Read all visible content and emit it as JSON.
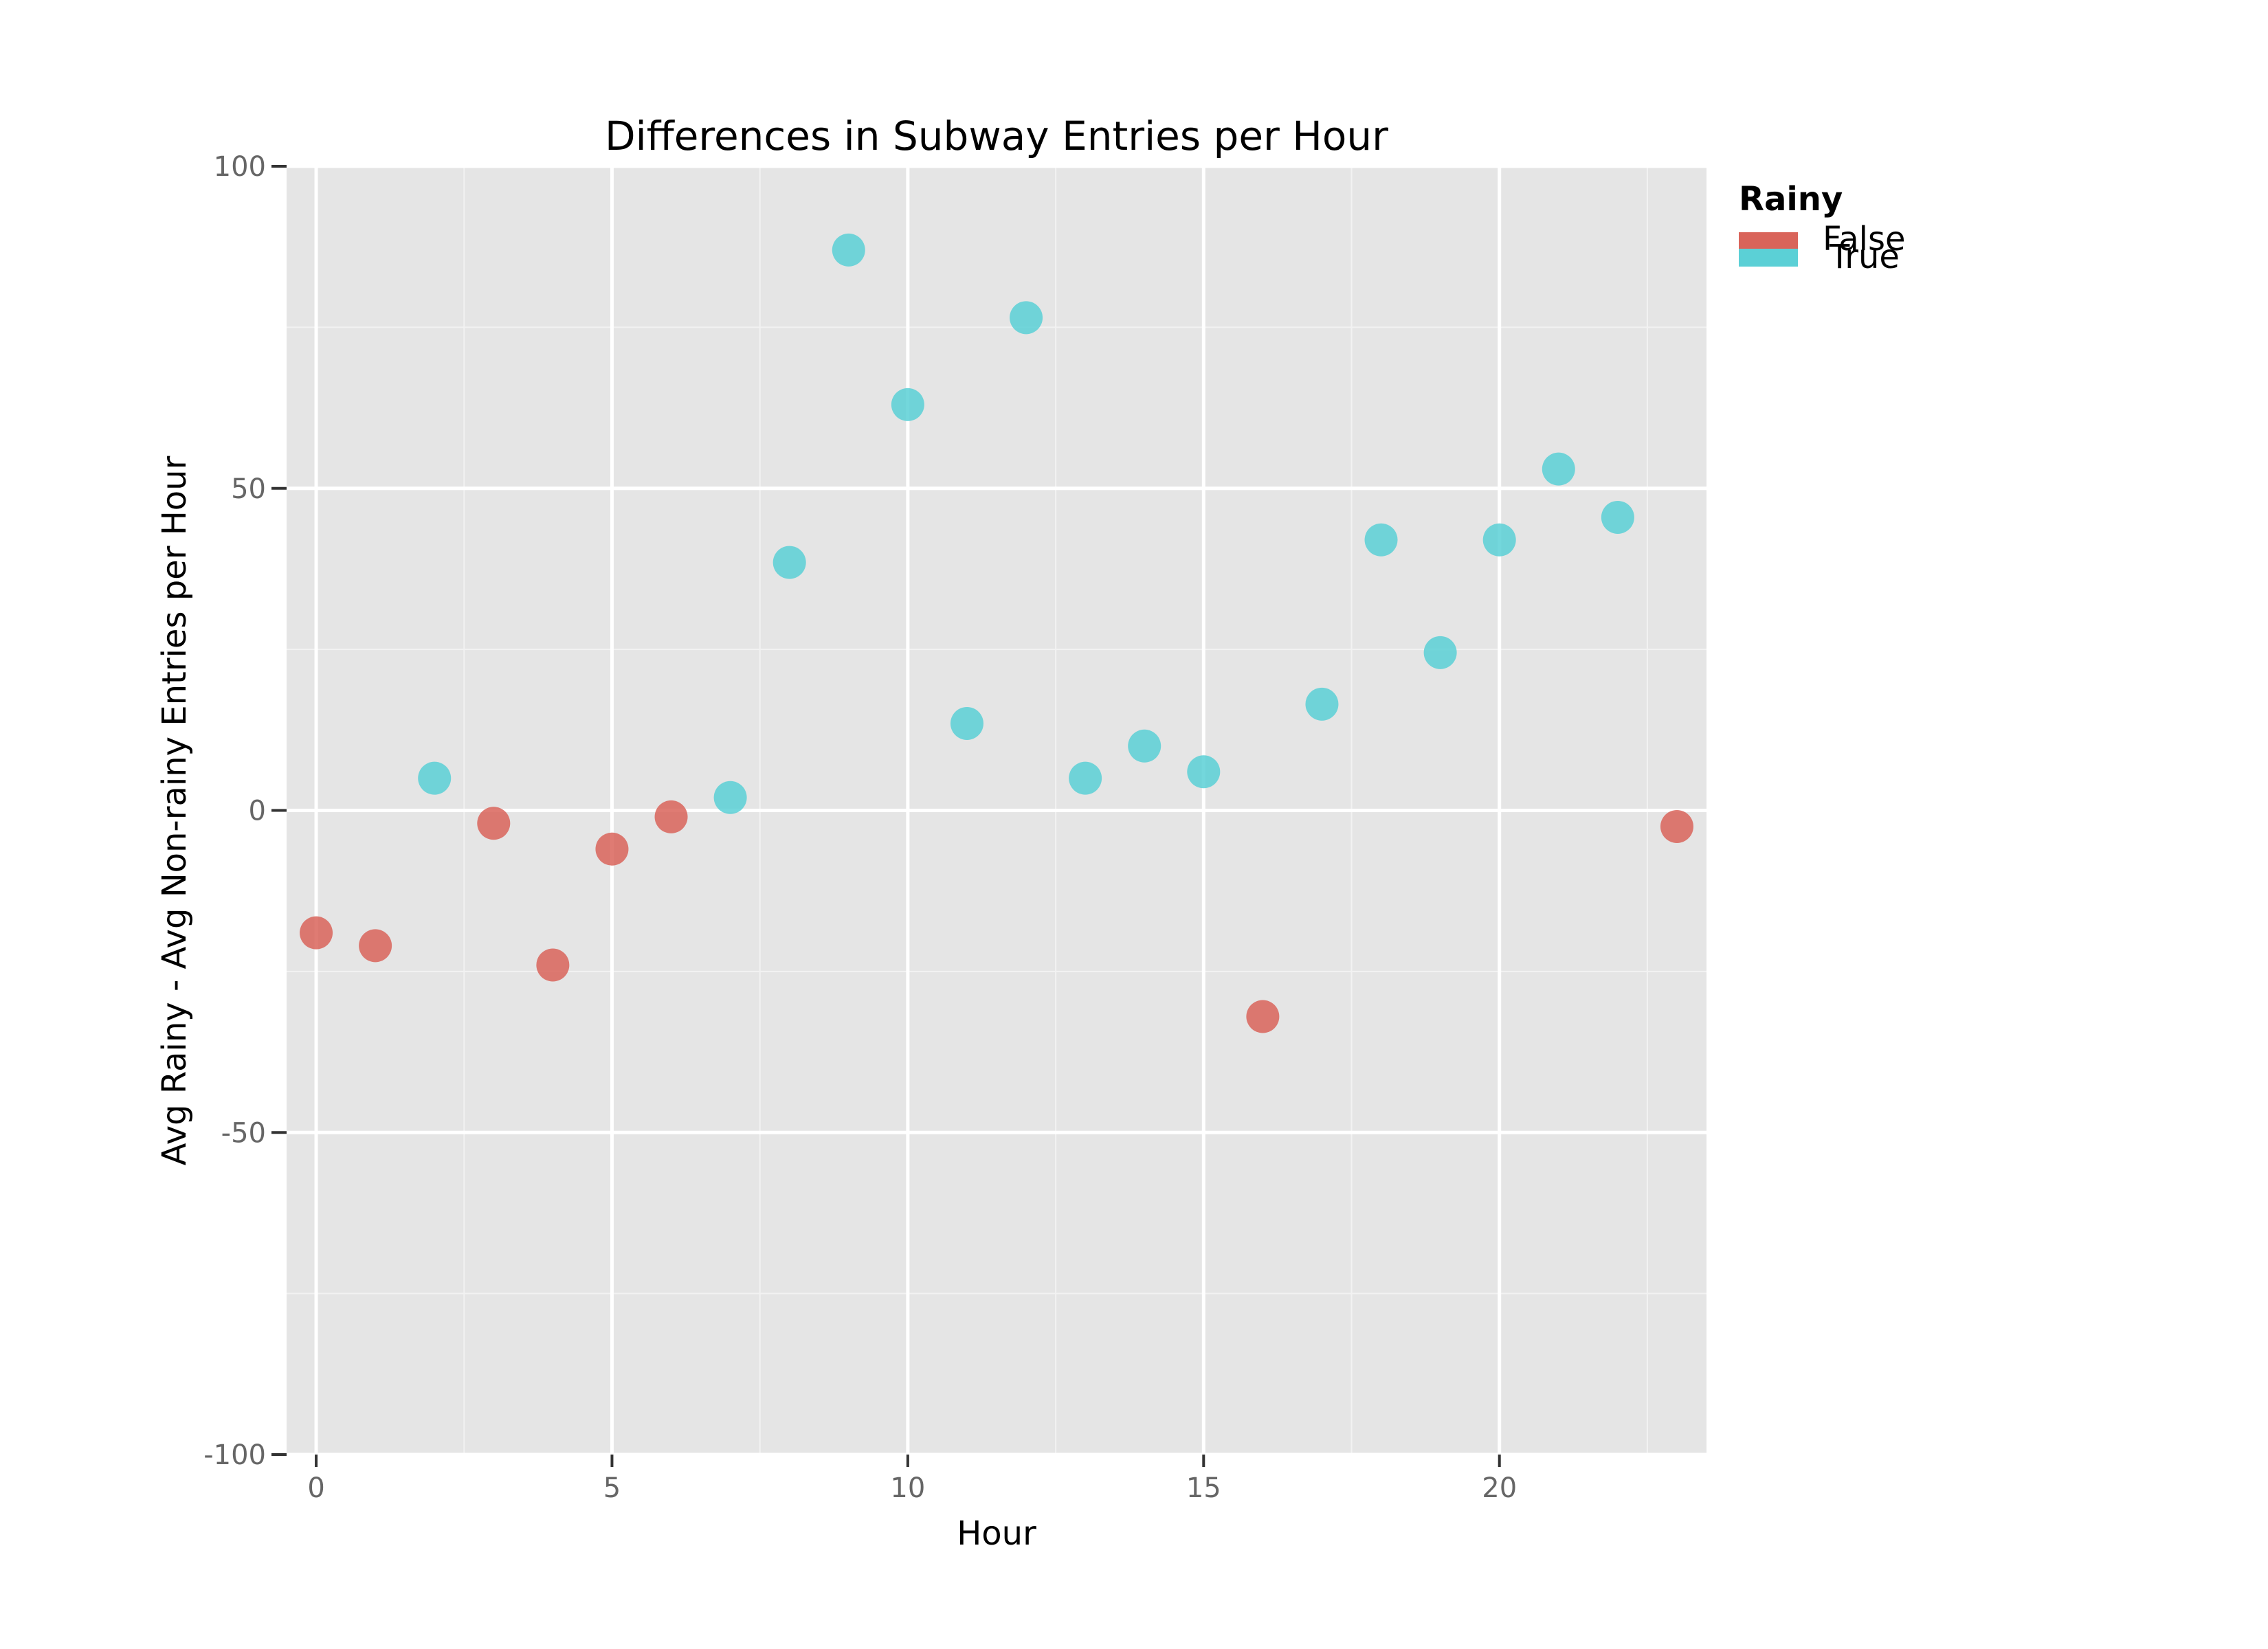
{
  "chart_data": {
    "type": "scatter",
    "title": "Differences in Subway Entries per Hour",
    "xlabel": "Hour",
    "ylabel": "Avg Rainy - Avg Non-rainy Entries per Hour",
    "xlim": [
      -0.5,
      23.5
    ],
    "ylim": [
      -100,
      100
    ],
    "x_ticks": [
      0,
      5,
      10,
      15,
      20
    ],
    "y_ticks": [
      -100,
      -50,
      0,
      50,
      100
    ],
    "grid": true,
    "legend": {
      "title": "Rainy",
      "placement": "right",
      "entries": [
        {
          "label": "False",
          "color": "#d9645a"
        },
        {
          "label": "True",
          "color": "#5bd0d6"
        }
      ]
    },
    "series": [
      {
        "name": "False",
        "color": "#d9645a",
        "points": [
          {
            "x": 0,
            "y": -19
          },
          {
            "x": 1,
            "y": -21
          },
          {
            "x": 3,
            "y": -2
          },
          {
            "x": 4,
            "y": -24
          },
          {
            "x": 5,
            "y": -6
          },
          {
            "x": 6,
            "y": -1
          },
          {
            "x": 16,
            "y": -32
          },
          {
            "x": 23,
            "y": -2.5
          }
        ]
      },
      {
        "name": "True",
        "color": "#5bd0d6",
        "points": [
          {
            "x": 2,
            "y": 5
          },
          {
            "x": 7,
            "y": 2
          },
          {
            "x": 8,
            "y": 38.5
          },
          {
            "x": 9,
            "y": 87
          },
          {
            "x": 10,
            "y": 63
          },
          {
            "x": 11,
            "y": 13.5
          },
          {
            "x": 12,
            "y": 76.5
          },
          {
            "x": 13,
            "y": 5
          },
          {
            "x": 14,
            "y": 10
          },
          {
            "x": 15,
            "y": 6
          },
          {
            "x": 17,
            "y": 16.5
          },
          {
            "x": 18,
            "y": 42
          },
          {
            "x": 19,
            "y": 24.5
          },
          {
            "x": 20,
            "y": 42
          },
          {
            "x": 21,
            "y": 53
          },
          {
            "x": 22,
            "y": 45.5
          }
        ]
      }
    ]
  }
}
